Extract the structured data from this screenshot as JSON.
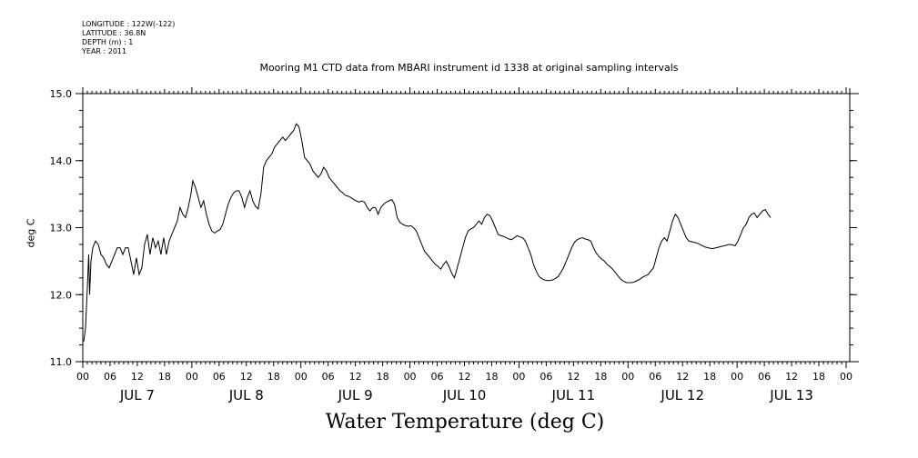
{
  "header_info": {
    "longitude": "LONGITUDE : 122W(-122)",
    "latitude": "LATITUDE : 36.8N",
    "depth": "DEPTH (m) : 1",
    "year": "YEAR : 2011"
  },
  "chart_data": {
    "type": "line",
    "title": "Mooring M1 CTD data from MBARI instrument id 1338 at original sampling intervals",
    "ylabel": "deg C",
    "xlabel": "Water Temperature (deg C)",
    "ylim": [
      11.0,
      15.0
    ],
    "yticks": [
      "11.0",
      "12.0",
      "13.0",
      "14.0",
      "15.0"
    ],
    "x_unit": "hours since JUL 7 00",
    "xlim": [
      0,
      168
    ],
    "hour_tick_labels": [
      "00",
      "06",
      "12",
      "18",
      "00",
      "06",
      "12",
      "18",
      "00",
      "06",
      "12",
      "18",
      "00",
      "06",
      "12",
      "18",
      "00",
      "06",
      "12",
      "18",
      "00",
      "06",
      "12",
      "18",
      "00",
      "06",
      "12",
      "18",
      "00"
    ],
    "day_labels": [
      "JUL  7",
      "JUL  8",
      "JUL  9",
      "JUL 10",
      "JUL 11",
      "JUL 12",
      "JUL 13"
    ],
    "series": [
      {
        "points": [
          [
            0.2,
            11.3
          ],
          [
            0.6,
            11.5
          ],
          [
            1.0,
            12.1
          ],
          [
            1.3,
            12.6
          ],
          [
            1.5,
            12.0
          ],
          [
            1.8,
            12.5
          ],
          [
            2.2,
            12.7
          ],
          [
            2.8,
            12.8
          ],
          [
            3.4,
            12.75
          ],
          [
            4.0,
            12.6
          ],
          [
            4.6,
            12.55
          ],
          [
            5.2,
            12.45
          ],
          [
            5.8,
            12.4
          ],
          [
            6.4,
            12.5
          ],
          [
            7.0,
            12.6
          ],
          [
            7.6,
            12.7
          ],
          [
            8.2,
            12.7
          ],
          [
            8.8,
            12.6
          ],
          [
            9.4,
            12.7
          ],
          [
            10.0,
            12.7
          ],
          [
            10.6,
            12.5
          ],
          [
            11.2,
            12.3
          ],
          [
            11.8,
            12.55
          ],
          [
            12.4,
            12.3
          ],
          [
            13.0,
            12.4
          ],
          [
            13.6,
            12.75
          ],
          [
            14.2,
            12.9
          ],
          [
            14.8,
            12.6
          ],
          [
            15.4,
            12.85
          ],
          [
            16.0,
            12.7
          ],
          [
            16.6,
            12.8
          ],
          [
            17.2,
            12.6
          ],
          [
            17.8,
            12.85
          ],
          [
            18.4,
            12.6
          ],
          [
            19.0,
            12.8
          ],
          [
            19.6,
            12.9
          ],
          [
            20.2,
            13.0
          ],
          [
            20.8,
            13.1
          ],
          [
            21.4,
            13.3
          ],
          [
            22.0,
            13.2
          ],
          [
            22.6,
            13.15
          ],
          [
            23.2,
            13.3
          ],
          [
            23.8,
            13.5
          ],
          [
            24.2,
            13.7
          ],
          [
            24.8,
            13.6
          ],
          [
            25.4,
            13.45
          ],
          [
            26.0,
            13.3
          ],
          [
            26.6,
            13.4
          ],
          [
            27.2,
            13.2
          ],
          [
            27.8,
            13.05
          ],
          [
            28.4,
            12.95
          ],
          [
            29.0,
            12.92
          ],
          [
            29.6,
            12.95
          ],
          [
            30.2,
            12.97
          ],
          [
            30.8,
            13.05
          ],
          [
            31.4,
            13.2
          ],
          [
            32.0,
            13.35
          ],
          [
            32.6,
            13.45
          ],
          [
            33.2,
            13.52
          ],
          [
            33.8,
            13.55
          ],
          [
            34.4,
            13.55
          ],
          [
            35.0,
            13.45
          ],
          [
            35.6,
            13.3
          ],
          [
            36.2,
            13.45
          ],
          [
            36.8,
            13.55
          ],
          [
            37.4,
            13.4
          ],
          [
            38.0,
            13.32
          ],
          [
            38.6,
            13.28
          ],
          [
            39.2,
            13.5
          ],
          [
            39.8,
            13.9
          ],
          [
            40.4,
            14.0
          ],
          [
            41.0,
            14.05
          ],
          [
            41.6,
            14.1
          ],
          [
            42.2,
            14.2
          ],
          [
            42.8,
            14.25
          ],
          [
            43.4,
            14.3
          ],
          [
            44.0,
            14.35
          ],
          [
            44.6,
            14.3
          ],
          [
            45.2,
            14.35
          ],
          [
            45.8,
            14.4
          ],
          [
            46.4,
            14.45
          ],
          [
            47.0,
            14.55
          ],
          [
            47.6,
            14.5
          ],
          [
            48.2,
            14.3
          ],
          [
            48.8,
            14.05
          ],
          [
            49.4,
            14.0
          ],
          [
            50.0,
            13.95
          ],
          [
            50.6,
            13.85
          ],
          [
            51.2,
            13.8
          ],
          [
            51.8,
            13.75
          ],
          [
            52.4,
            13.8
          ],
          [
            53.0,
            13.9
          ],
          [
            53.6,
            13.85
          ],
          [
            54.2,
            13.75
          ],
          [
            54.8,
            13.7
          ],
          [
            55.4,
            13.65
          ],
          [
            56.0,
            13.6
          ],
          [
            56.6,
            13.55
          ],
          [
            57.2,
            13.52
          ],
          [
            57.8,
            13.48
          ],
          [
            58.4,
            13.47
          ],
          [
            59.0,
            13.45
          ],
          [
            59.6,
            13.42
          ],
          [
            60.2,
            13.4
          ],
          [
            60.8,
            13.38
          ],
          [
            61.4,
            13.4
          ],
          [
            62.0,
            13.38
          ],
          [
            62.6,
            13.3
          ],
          [
            63.2,
            13.25
          ],
          [
            63.8,
            13.3
          ],
          [
            64.4,
            13.3
          ],
          [
            65.0,
            13.2
          ],
          [
            65.6,
            13.3
          ],
          [
            66.2,
            13.35
          ],
          [
            66.8,
            13.38
          ],
          [
            67.4,
            13.4
          ],
          [
            68.0,
            13.42
          ],
          [
            68.6,
            13.35
          ],
          [
            69.2,
            13.15
          ],
          [
            69.8,
            13.08
          ],
          [
            70.4,
            13.05
          ],
          [
            71.0,
            13.03
          ],
          [
            71.6,
            13.02
          ],
          [
            72.2,
            13.03
          ],
          [
            72.8,
            13.0
          ],
          [
            73.4,
            12.95
          ],
          [
            74.0,
            12.85
          ],
          [
            74.6,
            12.75
          ],
          [
            75.2,
            12.65
          ],
          [
            75.8,
            12.6
          ],
          [
            76.4,
            12.55
          ],
          [
            77.0,
            12.5
          ],
          [
            77.6,
            12.45
          ],
          [
            78.2,
            12.42
          ],
          [
            78.8,
            12.38
          ],
          [
            79.4,
            12.45
          ],
          [
            80.0,
            12.5
          ],
          [
            80.6,
            12.42
          ],
          [
            81.2,
            12.32
          ],
          [
            81.8,
            12.25
          ],
          [
            82.4,
            12.4
          ],
          [
            83.0,
            12.55
          ],
          [
            83.6,
            12.7
          ],
          [
            84.2,
            12.85
          ],
          [
            84.8,
            12.95
          ],
          [
            85.4,
            12.98
          ],
          [
            86.0,
            13.0
          ],
          [
            86.6,
            13.05
          ],
          [
            87.2,
            13.1
          ],
          [
            87.8,
            13.05
          ],
          [
            88.4,
            13.15
          ],
          [
            89.0,
            13.2
          ],
          [
            89.6,
            13.18
          ],
          [
            90.2,
            13.1
          ],
          [
            90.8,
            13.0
          ],
          [
            91.4,
            12.9
          ],
          [
            92.0,
            12.88
          ],
          [
            92.6,
            12.87
          ],
          [
            93.2,
            12.85
          ],
          [
            93.8,
            12.83
          ],
          [
            94.4,
            12.82
          ],
          [
            95.0,
            12.85
          ],
          [
            95.6,
            12.88
          ],
          [
            96.2,
            12.86
          ],
          [
            96.8,
            12.85
          ],
          [
            97.4,
            12.8
          ],
          [
            98.0,
            12.7
          ],
          [
            98.6,
            12.6
          ],
          [
            99.2,
            12.45
          ],
          [
            99.8,
            12.35
          ],
          [
            100.4,
            12.27
          ],
          [
            101.0,
            12.24
          ],
          [
            101.6,
            12.22
          ],
          [
            102.2,
            12.21
          ],
          [
            102.8,
            12.21
          ],
          [
            103.4,
            12.22
          ],
          [
            104.0,
            12.24
          ],
          [
            104.6,
            12.27
          ],
          [
            105.2,
            12.33
          ],
          [
            105.8,
            12.4
          ],
          [
            106.4,
            12.5
          ],
          [
            107.0,
            12.6
          ],
          [
            107.6,
            12.7
          ],
          [
            108.2,
            12.78
          ],
          [
            108.8,
            12.82
          ],
          [
            109.4,
            12.84
          ],
          [
            110.0,
            12.85
          ],
          [
            110.6,
            12.83
          ],
          [
            111.2,
            12.82
          ],
          [
            111.8,
            12.8
          ],
          [
            112.4,
            12.7
          ],
          [
            113.0,
            12.62
          ],
          [
            113.6,
            12.57
          ],
          [
            114.2,
            12.53
          ],
          [
            114.8,
            12.5
          ],
          [
            115.4,
            12.45
          ],
          [
            116.0,
            12.42
          ],
          [
            116.6,
            12.38
          ],
          [
            117.2,
            12.33
          ],
          [
            117.8,
            12.28
          ],
          [
            118.4,
            12.23
          ],
          [
            119.0,
            12.2
          ],
          [
            119.6,
            12.18
          ],
          [
            120.2,
            12.18
          ],
          [
            120.8,
            12.18
          ],
          [
            121.4,
            12.19
          ],
          [
            122.0,
            12.21
          ],
          [
            122.6,
            12.23
          ],
          [
            123.2,
            12.26
          ],
          [
            123.8,
            12.28
          ],
          [
            124.4,
            12.3
          ],
          [
            125.0,
            12.35
          ],
          [
            125.6,
            12.4
          ],
          [
            126.2,
            12.55
          ],
          [
            126.8,
            12.7
          ],
          [
            127.4,
            12.8
          ],
          [
            128.0,
            12.85
          ],
          [
            128.6,
            12.8
          ],
          [
            129.2,
            12.95
          ],
          [
            129.8,
            13.1
          ],
          [
            130.4,
            13.2
          ],
          [
            131.0,
            13.15
          ],
          [
            131.6,
            13.05
          ],
          [
            132.2,
            12.95
          ],
          [
            132.8,
            12.85
          ],
          [
            133.4,
            12.8
          ],
          [
            134.0,
            12.79
          ],
          [
            134.6,
            12.78
          ],
          [
            135.2,
            12.77
          ],
          [
            135.8,
            12.75
          ],
          [
            136.4,
            12.73
          ],
          [
            137.0,
            12.71
          ],
          [
            137.6,
            12.7
          ],
          [
            138.2,
            12.69
          ],
          [
            138.8,
            12.69
          ],
          [
            139.4,
            12.7
          ],
          [
            140.0,
            12.71
          ],
          [
            140.6,
            12.72
          ],
          [
            141.2,
            12.73
          ],
          [
            141.8,
            12.74
          ],
          [
            142.4,
            12.75
          ],
          [
            143.0,
            12.74
          ],
          [
            143.6,
            12.73
          ],
          [
            144.2,
            12.8
          ],
          [
            144.8,
            12.9
          ],
          [
            145.4,
            13.0
          ],
          [
            146.0,
            13.05
          ],
          [
            146.6,
            13.15
          ],
          [
            147.2,
            13.2
          ],
          [
            147.8,
            13.22
          ],
          [
            148.4,
            13.15
          ],
          [
            149.0,
            13.2
          ],
          [
            149.6,
            13.25
          ],
          [
            150.2,
            13.27
          ],
          [
            150.8,
            13.2
          ],
          [
            151.4,
            13.15
          ]
        ]
      }
    ]
  }
}
